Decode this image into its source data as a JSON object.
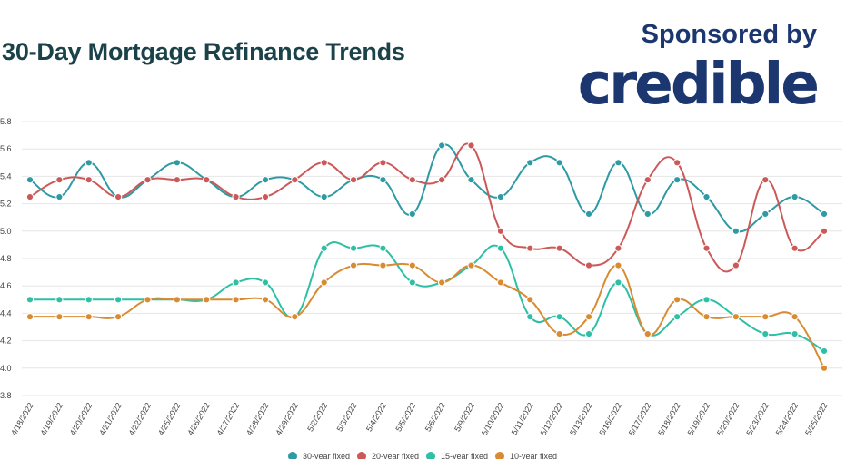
{
  "header": {
    "title": "30-Day Mortgage Refinance Trends",
    "sponsor_text": "Sponsored by",
    "brand": "credible",
    "brand_color": "#1c3770"
  },
  "chart_data": {
    "type": "line",
    "title": "30-Day Mortgage Refinance Trends",
    "xlabel": "",
    "ylabel": "",
    "ylim": [
      3.8,
      5.8
    ],
    "yticks": [
      3.8,
      4.0,
      4.2,
      4.4,
      4.6,
      4.8,
      5.0,
      5.2,
      5.4,
      5.6,
      5.8
    ],
    "grid": true,
    "legend_position": "bottom",
    "categories": [
      "4/18/2022",
      "4/19/2022",
      "4/20/2022",
      "4/21/2022",
      "4/22/2022",
      "4/25/2022",
      "4/26/2022",
      "4/27/2022",
      "4/28/2022",
      "4/29/2022",
      "5/2/2022",
      "5/3/2022",
      "5/4/2022",
      "5/5/2022",
      "5/6/2022",
      "5/9/2022",
      "5/10/2022",
      "5/11/2022",
      "5/12/2022",
      "5/13/2022",
      "5/16/2022",
      "5/17/2022",
      "5/18/2022",
      "5/19/2022",
      "5/20/2022",
      "5/23/2022",
      "5/24/2022",
      "5/25/2022"
    ],
    "series": [
      {
        "name": "30-year fixed",
        "color": "#2e9aa3",
        "values": [
          5.375,
          5.25,
          5.5,
          5.25,
          5.375,
          5.5,
          5.375,
          5.25,
          5.375,
          5.375,
          5.25,
          5.375,
          5.375,
          5.125,
          5.625,
          5.375,
          5.25,
          5.5,
          5.5,
          5.125,
          5.5,
          5.125,
          5.375,
          5.25,
          5.0,
          5.125,
          5.25,
          5.125
        ]
      },
      {
        "name": "20-year fixed",
        "color": "#cc5858",
        "values": [
          5.25,
          5.375,
          5.375,
          5.25,
          5.375,
          5.375,
          5.375,
          5.25,
          5.25,
          5.375,
          5.5,
          5.375,
          5.5,
          5.375,
          5.375,
          5.625,
          5.0,
          4.875,
          4.875,
          4.75,
          4.875,
          5.375,
          5.5,
          4.875,
          4.75,
          5.375,
          4.875,
          5.0
        ]
      },
      {
        "name": "15-year fixed",
        "color": "#2ebfa5",
        "values": [
          4.5,
          4.5,
          4.5,
          4.5,
          4.5,
          4.5,
          4.5,
          4.625,
          4.625,
          4.375,
          4.875,
          4.875,
          4.875,
          4.625,
          4.625,
          4.75,
          4.875,
          4.375,
          4.375,
          4.25,
          4.625,
          4.25,
          4.375,
          4.5,
          4.375,
          4.25,
          4.25,
          4.125
        ]
      },
      {
        "name": "10-year fixed",
        "color": "#d98b32",
        "values": [
          4.375,
          4.375,
          4.375,
          4.375,
          4.5,
          4.5,
          4.5,
          4.5,
          4.5,
          4.375,
          4.625,
          4.75,
          4.75,
          4.75,
          4.625,
          4.75,
          4.625,
          4.5,
          4.25,
          4.375,
          4.75,
          4.25,
          4.5,
          4.375,
          4.375,
          4.375,
          4.375,
          4.0
        ]
      }
    ]
  }
}
